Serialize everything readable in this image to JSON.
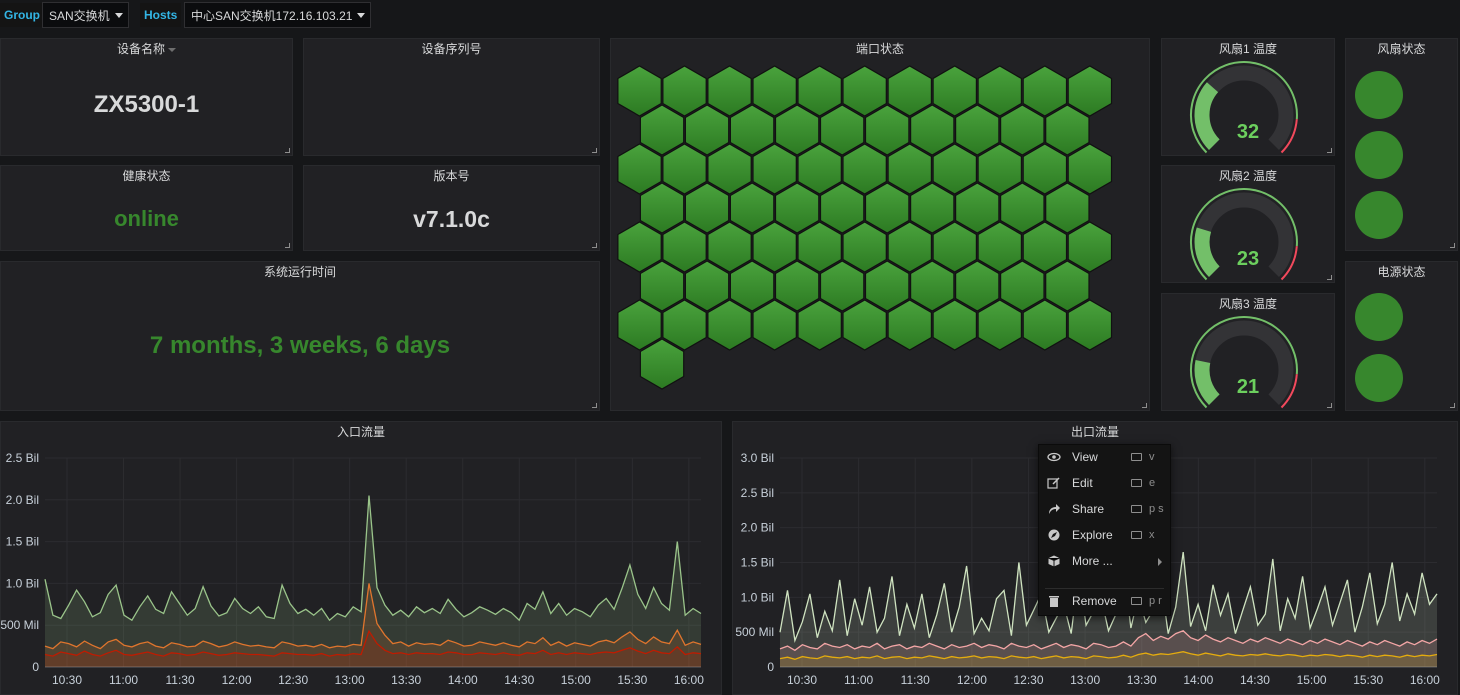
{
  "variables": {
    "group_label": "Group",
    "group_value": "SAN交换机",
    "hosts_label": "Hosts",
    "hosts_value": "中心SAN交换机172.16.103.21"
  },
  "panels": {
    "device_name": {
      "title": "设备名称",
      "value": "ZX5300-1"
    },
    "serial": {
      "title": "设备序列号",
      "value": ""
    },
    "health": {
      "title": "健康状态",
      "value": "online"
    },
    "version": {
      "title": "版本号",
      "value": "v7.1.0c"
    },
    "uptime": {
      "title": "系统运行时间",
      "value": "7 months, 3 weeks, 6 days"
    },
    "ports": {
      "title": "端口状态",
      "port_count": 75,
      "port_status": "all-up"
    },
    "fan1": {
      "title": "风扇1 温度",
      "value": "32",
      "gauge_level": 0.32
    },
    "fan2": {
      "title": "风扇2 温度",
      "value": "23",
      "gauge_level": 0.23
    },
    "fan3": {
      "title": "风扇3 温度",
      "value": "21",
      "gauge_level": 0.21
    },
    "fan_status": {
      "title": "风扇状态",
      "indicators": [
        "ok",
        "ok",
        "ok"
      ]
    },
    "power_status": {
      "title": "电源状态",
      "indicators": [
        "ok",
        "ok"
      ]
    },
    "inbound": {
      "title": "入口流量"
    },
    "outbound": {
      "title": "出口流量"
    }
  },
  "colors": {
    "ok_green": "#37872d",
    "stat_green": "#37872d",
    "gauge_green": "#73bf69",
    "gauge_red": "#f2495c",
    "link_blue": "#33b5e5"
  },
  "context_menu": {
    "items": [
      {
        "icon": "eye-icon",
        "label": "View",
        "shortcut": "v"
      },
      {
        "icon": "edit-icon",
        "label": "Edit",
        "shortcut": "e"
      },
      {
        "icon": "share-icon",
        "label": "Share",
        "shortcut": "p s"
      },
      {
        "icon": "explore-icon",
        "label": "Explore",
        "shortcut": "x"
      },
      {
        "icon": "cube-icon",
        "label": "More ...",
        "shortcut": ""
      },
      {
        "icon": "trash-icon",
        "label": "Remove",
        "shortcut": "p r"
      }
    ]
  },
  "chart_data": [
    {
      "type": "area",
      "title": "入口流量",
      "y_ticks": [
        "0",
        "500 Mil",
        "1.0 Bil",
        "1.5 Bil",
        "2.0 Bil",
        "2.5 Bil"
      ],
      "ylim": [
        0,
        2500000000
      ],
      "x_ticks": [
        "10:30",
        "11:00",
        "11:30",
        "12:00",
        "12:30",
        "13:00",
        "13:30",
        "14:00",
        "14:30",
        "15:00",
        "15:30",
        "16:00"
      ],
      "grid": true,
      "series": [
        {
          "color": "#9ac48a",
          "values": [
            1050,
            620,
            580,
            740,
            920,
            780,
            600,
            650,
            870,
            980,
            620,
            560,
            720,
            850,
            690,
            640,
            900,
            760,
            620,
            700,
            960,
            730,
            610,
            650,
            820,
            700,
            640,
            720,
            600,
            580,
            980,
            760,
            640,
            690,
            620,
            700,
            560,
            640,
            600,
            720,
            660,
            2050,
            950,
            740,
            620,
            680,
            600,
            720,
            650,
            700,
            640,
            810,
            690,
            600,
            650,
            720,
            680,
            630,
            700,
            650,
            560,
            760,
            690,
            900,
            640,
            760,
            620,
            700,
            660,
            600,
            740,
            820,
            690,
            940,
            1220,
            870,
            700,
            950,
            760,
            680,
            1500,
            620,
            700,
            640
          ]
        },
        {
          "color": "#e0752d",
          "values": [
            250,
            220,
            300,
            280,
            240,
            310,
            260,
            220,
            300,
            330,
            260,
            240,
            280,
            300,
            250,
            230,
            290,
            270,
            240,
            250,
            310,
            280,
            240,
            260,
            300,
            270,
            250,
            260,
            240,
            230,
            300,
            280,
            250,
            260,
            240,
            270,
            230,
            250,
            240,
            270,
            260,
            1000,
            520,
            380,
            280,
            300,
            250,
            290,
            270,
            280,
            260,
            320,
            290,
            250,
            260,
            300,
            280,
            260,
            290,
            260,
            240,
            300,
            280,
            350,
            260,
            300,
            250,
            290,
            270,
            250,
            300,
            320,
            290,
            360,
            420,
            330,
            280,
            360,
            300,
            280,
            440,
            260,
            300,
            270
          ]
        },
        {
          "color": "#bf1b00",
          "values": [
            150,
            130,
            180,
            160,
            140,
            190,
            150,
            130,
            170,
            200,
            150,
            140,
            160,
            180,
            150,
            130,
            170,
            160,
            140,
            150,
            180,
            160,
            140,
            150,
            170,
            160,
            150,
            150,
            140,
            130,
            170,
            160,
            150,
            150,
            140,
            160,
            130,
            150,
            140,
            160,
            150,
            430,
            280,
            200,
            160,
            170,
            150,
            170,
            160,
            160,
            150,
            180,
            170,
            150,
            150,
            170,
            160,
            150,
            170,
            150,
            140,
            170,
            160,
            200,
            150,
            170,
            150,
            170,
            160,
            150,
            170,
            180,
            170,
            200,
            230,
            190,
            160,
            200,
            170,
            160,
            240,
            150,
            170,
            160
          ]
        }
      ]
    },
    {
      "type": "area",
      "title": "出口流量",
      "y_ticks": [
        "0",
        "500 Mil",
        "1.0 Bil",
        "1.5 Bil",
        "2.0 Bil",
        "2.5 Bil",
        "3.0 Bil"
      ],
      "ylim": [
        0,
        3000000000
      ],
      "x_ticks": [
        "10:30",
        "11:00",
        "11:30",
        "12:00",
        "12:30",
        "13:00",
        "13:30",
        "14:00",
        "14:30",
        "15:00",
        "15:30",
        "16:00"
      ],
      "grid": true,
      "series": [
        {
          "color": "#cfe3c0",
          "values": [
            500,
            1100,
            380,
            650,
            1050,
            420,
            800,
            520,
            1250,
            450,
            980,
            600,
            1150,
            500,
            700,
            1300,
            450,
            900,
            560,
            1050,
            420,
            750,
            1200,
            500,
            860,
            1450,
            480,
            700,
            520,
            980,
            1100,
            450,
            1500,
            600,
            820,
            1050,
            500,
            700,
            900,
            480,
            1350,
            600,
            800,
            1000,
            520,
            760,
            1450,
            560,
            1020,
            640,
            820,
            1250,
            480,
            860,
            1650,
            580,
            900,
            520,
            1180,
            740,
            1050,
            480,
            820,
            1150,
            600,
            760,
            1550,
            520,
            980,
            700,
            1300,
            560,
            840,
            1150,
            600,
            920,
            1250,
            500,
            860,
            1350,
            620,
            900,
            1500,
            660,
            1050,
            760,
            1350,
            900,
            1050
          ]
        },
        {
          "color": "#f4a6a6",
          "values": [
            260,
            300,
            240,
            320,
            280,
            260,
            340,
            300,
            280,
            320,
            260,
            300,
            280,
            340,
            260,
            300,
            320,
            260,
            300,
            280,
            340,
            300,
            260,
            320,
            280,
            300,
            340,
            280,
            320,
            300,
            260,
            340,
            300,
            280,
            320,
            260,
            300,
            340,
            280,
            320,
            300,
            260,
            340,
            320,
            280,
            300,
            360,
            300,
            420,
            480,
            380,
            440,
            400,
            480,
            520,
            420,
            380,
            460,
            400,
            360,
            420,
            380,
            340,
            400,
            360,
            420,
            380,
            340,
            400,
            360,
            320,
            380,
            340,
            400,
            360,
            320,
            380,
            340,
            300,
            360,
            320,
            380,
            340,
            300,
            360,
            320,
            380,
            340,
            400
          ]
        },
        {
          "color": "#e5ac0e",
          "values": [
            120,
            140,
            110,
            150,
            130,
            120,
            160,
            140,
            130,
            150,
            120,
            140,
            130,
            160,
            120,
            140,
            150,
            120,
            140,
            130,
            160,
            140,
            120,
            150,
            130,
            140,
            160,
            130,
            150,
            140,
            120,
            160,
            140,
            130,
            150,
            120,
            140,
            160,
            130,
            150,
            140,
            120,
            160,
            150,
            130,
            140,
            170,
            140,
            180,
            200,
            170,
            190,
            180,
            200,
            220,
            190,
            170,
            200,
            180,
            160,
            190,
            170,
            160,
            180,
            170,
            190,
            170,
            160,
            180,
            170,
            150,
            170,
            160,
            180,
            170,
            150,
            170,
            160,
            140,
            170,
            150,
            170,
            160,
            140,
            170,
            150,
            170,
            160,
            180
          ]
        }
      ]
    }
  ]
}
